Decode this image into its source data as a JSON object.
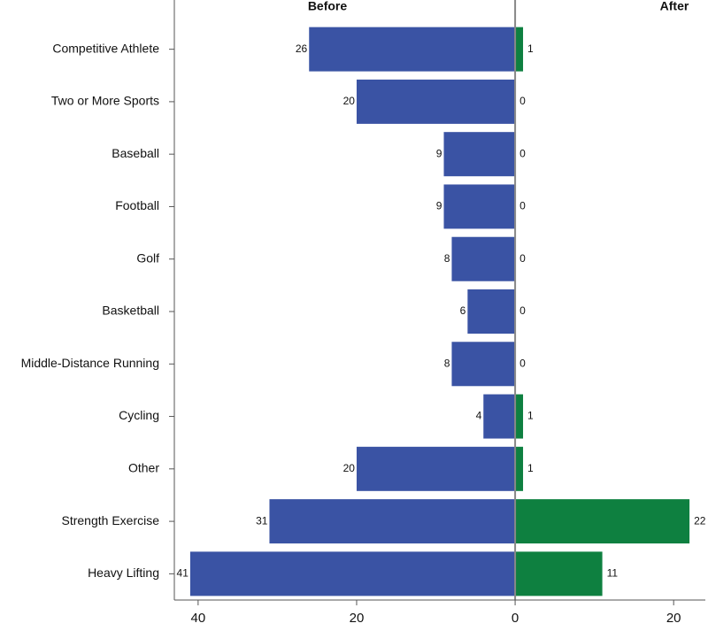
{
  "chart_data": {
    "type": "diverging-bar",
    "categories": [
      "Competitive Athlete",
      "Two or More Sports",
      "Baseball",
      "Football",
      "Golf",
      "Basketball",
      "Middle-Distance Running",
      "Cycling",
      "Other",
      "Strength Exercise",
      "Heavy Lifting"
    ],
    "series": [
      {
        "name": "Before",
        "color": "#3a53a4",
        "values": [
          -26,
          -20,
          -9,
          -9,
          -8,
          -6,
          -8,
          -4,
          -20,
          -31,
          -41
        ],
        "value_labels": [
          "26",
          "20",
          "9",
          "9",
          "8",
          "6",
          "8",
          "4",
          "20",
          "31",
          "41"
        ]
      },
      {
        "name": "After",
        "color": "#0e8040",
        "values": [
          1,
          0,
          0,
          0,
          0,
          0,
          0,
          1,
          1,
          22,
          11
        ]
      }
    ],
    "xlim": [
      -43,
      24
    ],
    "xticks": [
      {
        "value": -40,
        "label": "40"
      },
      {
        "value": -20,
        "label": "20"
      },
      0,
      20
    ]
  }
}
